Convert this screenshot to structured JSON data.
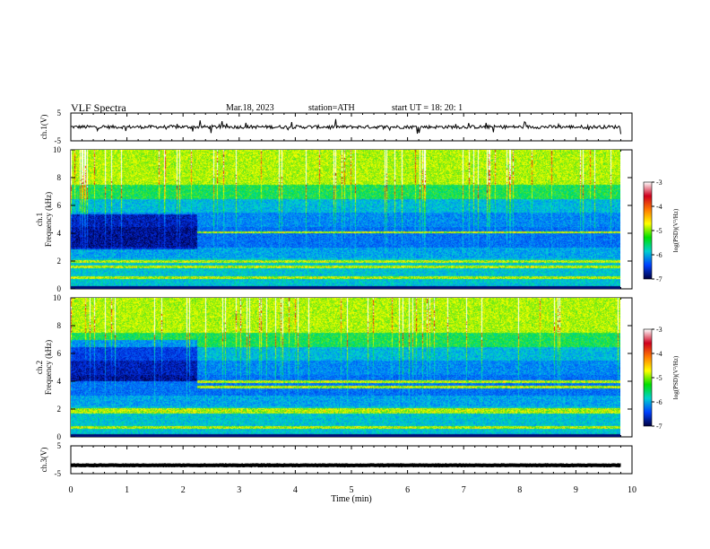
{
  "header": {
    "title": "VLF  Spectra",
    "date": "Mar.18, 2023",
    "station": "station=ATH",
    "start_ut": "start  UT  =   18: 20: 1"
  },
  "colorbar": {
    "label": "log(PSD)(V²/Hz)",
    "ticks": [
      "-3",
      "-4",
      "-5",
      "-6",
      "-7"
    ],
    "colors": [
      "#ffffff",
      "#d0001e",
      "#ff7a00",
      "#ffff00",
      "#00e000",
      "#00d0d0",
      "#0040ff",
      "#000040"
    ]
  },
  "chart_data": [
    {
      "type": "line",
      "name": "ch.1 waveform",
      "ylabel": "ch.1(V)",
      "ylim": [
        -5,
        5
      ],
      "yticks": [
        "5",
        "-5"
      ],
      "xlim": [
        0,
        10
      ],
      "duration_min": 9.8,
      "baseline_v": 0.0,
      "noise_amplitude_v": 0.6,
      "spike_amplitude_v": 2.5,
      "color": "#000000"
    },
    {
      "type": "heatmap",
      "name": "ch.1 spectrogram",
      "ylabel": "ch.1\nFrequency (kHz)",
      "ylim": [
        0,
        10
      ],
      "yticks": [
        "0",
        "2",
        "4",
        "6",
        "8",
        "10"
      ],
      "xlim": [
        0,
        10
      ],
      "duration_min": 9.8,
      "change_time_min": 2.25,
      "dark_band_khz": [
        2.9,
        5.4
      ],
      "noise_line_khz": [
        4.1,
        2.0,
        1.6,
        0.85
      ],
      "zlim": [
        -7,
        -3
      ]
    },
    {
      "type": "heatmap",
      "name": "ch.2 spectrogram",
      "ylabel": "ch.2\nFrequency (kHz)",
      "ylim": [
        0,
        10
      ],
      "yticks": [
        "0",
        "2",
        "4",
        "6",
        "8",
        "10"
      ],
      "xlim": [
        0,
        10
      ],
      "duration_min": 9.8,
      "change_time_min": 2.25,
      "dark_band_khz": [
        4.0,
        7.0
      ],
      "noise_line_khz": [
        4.0,
        3.6,
        2.0,
        1.8,
        0.7
      ],
      "zlim": [
        -7,
        -3
      ]
    },
    {
      "type": "line",
      "name": "ch.3 waveform",
      "ylabel": "ch.3(V)",
      "ylim": [
        -5,
        5
      ],
      "yticks": [
        "5",
        "-5"
      ],
      "xlim": [
        0,
        10
      ],
      "duration_min": 9.8,
      "baseline_v": -2.0,
      "noise_amplitude_v": 0.1,
      "color": "#000000"
    }
  ],
  "x_axis": {
    "label": "Time  (min)",
    "ticks": [
      "0",
      "1",
      "2",
      "3",
      "4",
      "5",
      "6",
      "7",
      "8",
      "9",
      "10"
    ]
  }
}
